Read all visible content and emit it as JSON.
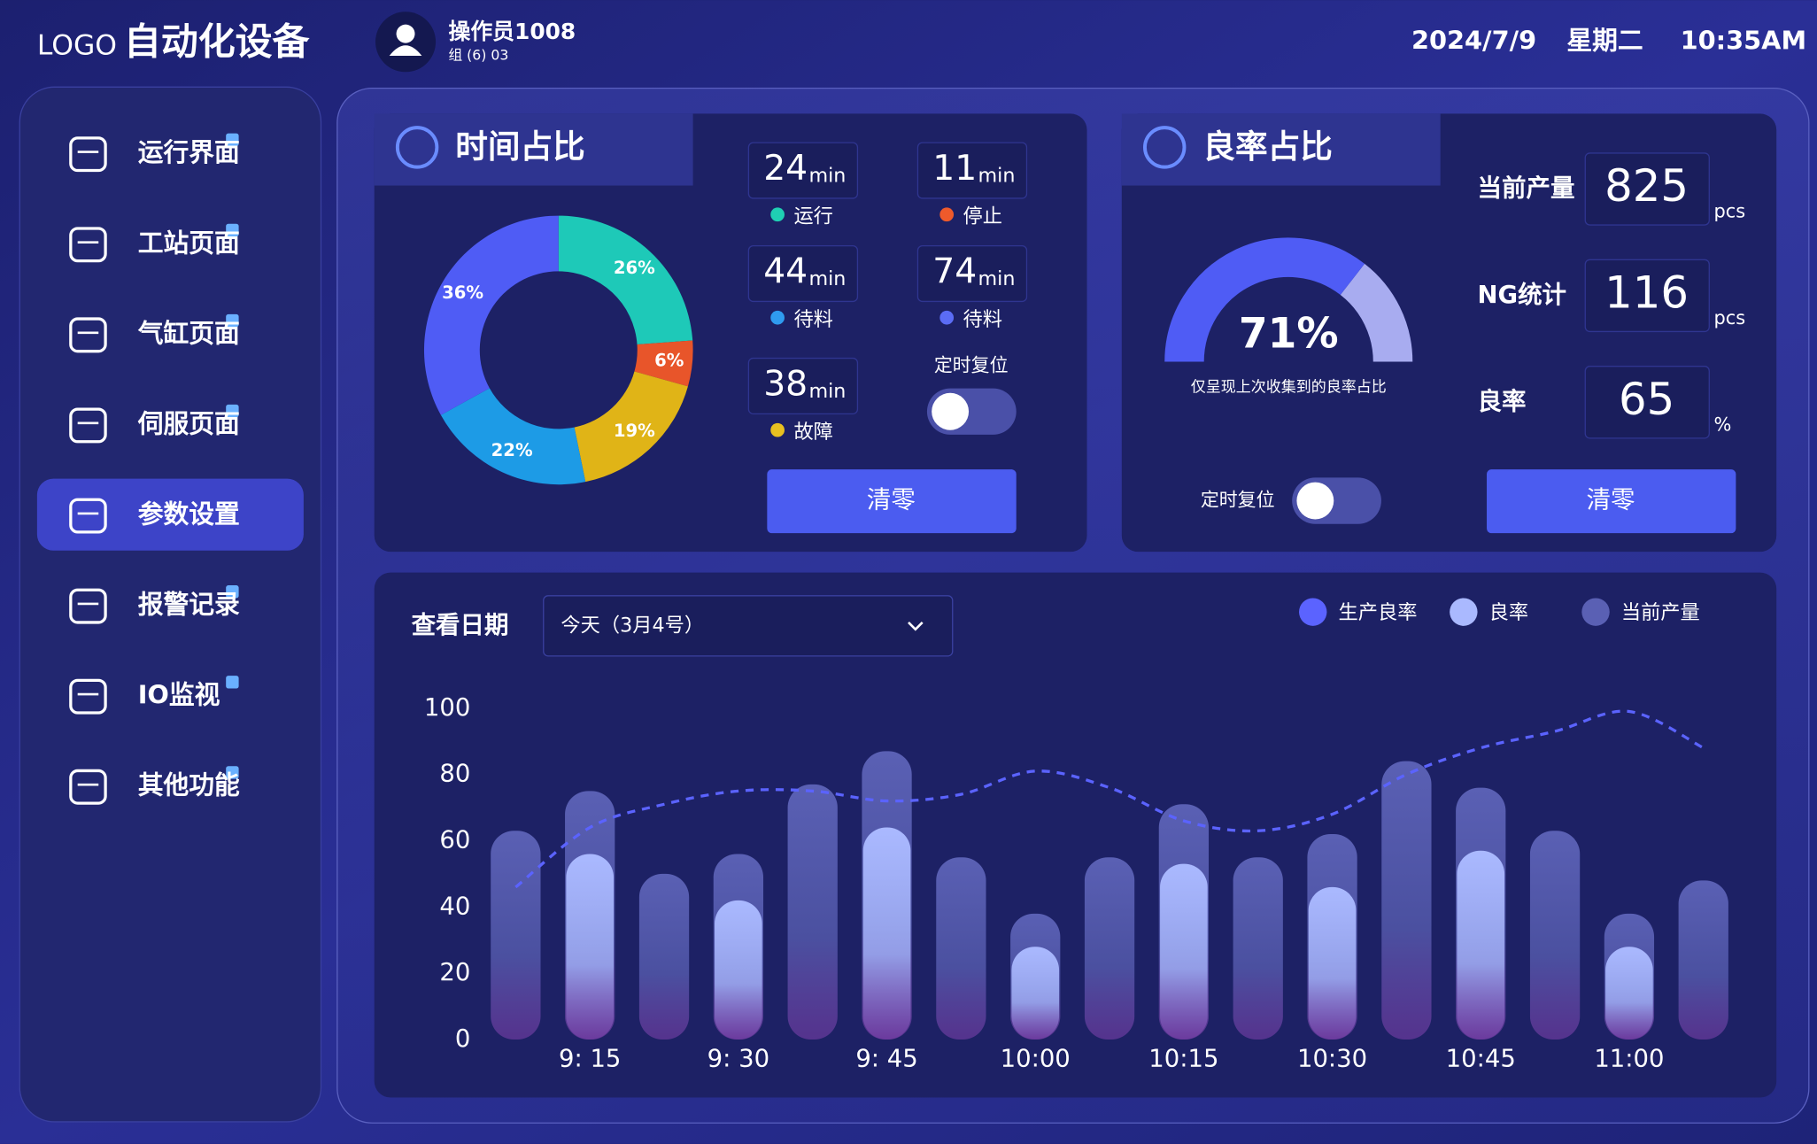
{
  "header": {
    "logo": "LOGO",
    "title": "自动化设备",
    "user": "操作员1008",
    "group": "组 (6) 03",
    "date": "2024/7/9",
    "weekday": "星期二",
    "time": "10:35AM"
  },
  "nav": {
    "items": [
      "运行界面",
      "工站页面",
      "气缸页面",
      "伺服页面",
      "参数设置",
      "报警记录",
      "IO监视",
      "其他功能"
    ],
    "active_index": 4
  },
  "time_panel": {
    "title": "时间占比",
    "chart": {
      "type": "donut",
      "values": [
        26,
        6,
        19,
        22,
        36
      ],
      "value_labels": [
        "26%",
        "6%",
        "19%",
        "22%",
        "36%"
      ],
      "colors": [
        "#1ec9b8",
        "#e8552a",
        "#e0b417",
        "#1d9be6",
        "#4f5cf5"
      ]
    },
    "stats": [
      {
        "value": 24,
        "unit": "min",
        "label": "运行",
        "color": "#1fcfb3"
      },
      {
        "value": 11,
        "unit": "min",
        "label": "停止",
        "color": "#ef5a2b"
      },
      {
        "value": 44,
        "unit": "min",
        "label": "待料",
        "color": "#2f9bf0"
      },
      {
        "value": 74,
        "unit": "min",
        "label": "待料",
        "color": "#5b6cf5"
      },
      {
        "value": 38,
        "unit": "min",
        "label": "故障",
        "color": "#e8c020"
      }
    ],
    "reset_label": "定时复位",
    "button": "清零"
  },
  "yield_panel": {
    "title": "良率占比",
    "gauge": {
      "type": "gauge",
      "value": 71,
      "value_label": "71%",
      "caption": "仅呈现上次收集到的良率占比",
      "color": "#4f5cf5",
      "rest_color": "#a8acf0"
    },
    "metrics": [
      {
        "label": "当前产量",
        "value": 825,
        "unit": "pcs"
      },
      {
        "label": "NG统计",
        "value": 116,
        "unit": "pcs"
      },
      {
        "label": "良率",
        "value": 65,
        "unit": "%"
      }
    ],
    "reset_label": "定时复位",
    "button": "清零"
  },
  "trend": {
    "date_label": "查看日期",
    "date_select": "今天（3月4号）",
    "chart_data": {
      "type": "bar",
      "categories": [
        null,
        "9: 15",
        null,
        "9: 30",
        null,
        "9: 45",
        null,
        "10:00",
        null,
        "10:15",
        null,
        "10:30",
        null,
        "10:45",
        null,
        "11:00",
        null
      ],
      "series": [
        {
          "name": "生产良率",
          "type": "line",
          "color": "#5b63ff",
          "values": [
            46,
            64,
            71,
            75,
            75,
            72,
            74,
            81,
            76,
            66,
            63,
            68,
            80,
            88,
            93,
            99,
            88
          ]
        },
        {
          "name": "良率",
          "type": "bar",
          "color": "#aab9ff",
          "values": [
            null,
            56,
            null,
            42,
            null,
            64,
            null,
            28,
            null,
            53,
            null,
            46,
            null,
            57,
            null,
            28,
            null
          ]
        },
        {
          "name": "当前产量",
          "type": "bar",
          "color": "#5a60b4",
          "values": [
            63,
            75,
            50,
            56,
            77,
            87,
            55,
            38,
            55,
            71,
            55,
            62,
            84,
            76,
            63,
            38,
            48
          ]
        }
      ],
      "ylim": [
        0,
        100
      ],
      "yticks": [
        0,
        20,
        40,
        60,
        80,
        100
      ]
    }
  }
}
